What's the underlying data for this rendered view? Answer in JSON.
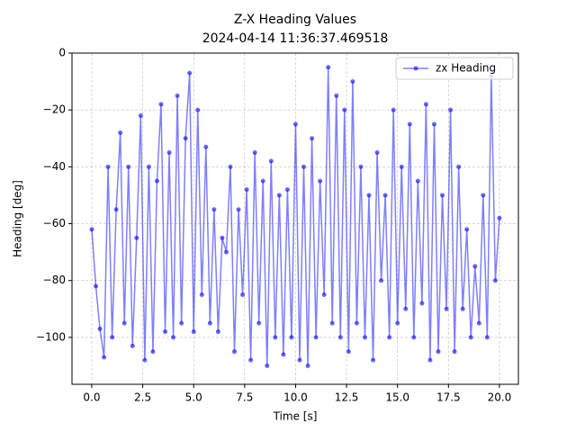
{
  "chart_data": {
    "type": "line",
    "title": "Z-X Heading Values",
    "subtitle": "2024-04-14 11:36:37.469518",
    "x_label": "Time [s]",
    "y_label": "Heading [deg]",
    "grid": true,
    "legend_position": "upper right",
    "xlim": [
      -0.97,
      20.93
    ],
    "ylim": [
      -116.5,
      0
    ],
    "xticks": [
      {
        "value": 0,
        "label": "0.0"
      },
      {
        "value": 2.5,
        "label": "2.5"
      },
      {
        "value": 5,
        "label": "5.0"
      },
      {
        "value": 7.5,
        "label": "7.5"
      },
      {
        "value": 10,
        "label": "10.0"
      },
      {
        "value": 12.5,
        "label": "12.5"
      },
      {
        "value": 15,
        "label": "15.0"
      },
      {
        "value": 17.5,
        "label": "17.5"
      },
      {
        "value": 20,
        "label": "20.0"
      }
    ],
    "yticks": [
      {
        "value": -100,
        "label": "−100"
      },
      {
        "value": -80,
        "label": "−80"
      },
      {
        "value": -60,
        "label": "−60"
      },
      {
        "value": -40,
        "label": "−40"
      },
      {
        "value": -20,
        "label": "−20"
      },
      0
    ],
    "x": [
      0,
      0.2,
      0.4,
      0.6,
      0.8,
      1,
      1.2,
      1.4,
      1.6,
      1.8,
      2,
      2.2,
      2.4,
      2.6,
      2.8,
      3,
      3.2,
      3.4,
      3.6,
      3.8,
      4,
      4.2,
      4.4,
      4.6,
      4.8,
      5,
      5.2,
      5.4,
      5.6,
      5.8,
      6,
      6.2,
      6.4,
      6.6,
      6.8,
      7,
      7.2,
      7.4,
      7.6,
      7.8,
      8,
      8.2,
      8.4,
      8.6,
      8.8,
      9,
      9.2,
      9.4,
      9.6,
      9.8,
      10,
      10.2,
      10.4,
      10.6,
      10.8,
      11,
      11.2,
      11.4,
      11.6,
      11.8,
      12,
      12.2,
      12.4,
      12.6,
      12.8,
      13,
      13.2,
      13.4,
      13.6,
      13.8,
      14,
      14.2,
      14.4,
      14.6,
      14.8,
      15,
      15.2,
      15.4,
      15.6,
      15.8,
      16,
      16.2,
      16.4,
      16.6,
      16.8,
      17,
      17.2,
      17.4,
      17.6,
      17.8,
      18,
      18.2,
      18.4,
      18.6,
      18.8,
      19,
      19.2,
      19.4,
      19.6,
      19.8,
      20
    ],
    "series": [
      {
        "name": "zx Heading",
        "color": "#0000ff",
        "values": [
          -62,
          -82,
          -97,
          -107,
          -40,
          -100,
          -55,
          -28,
          -95,
          -40,
          -103,
          -65,
          -22,
          -108,
          -40,
          -105,
          -45,
          -18,
          -98,
          -35,
          -100,
          -15,
          -95,
          -30,
          -7,
          -98,
          -20,
          -85,
          -33,
          -95,
          -55,
          -98,
          -65,
          -70,
          -40,
          -105,
          -55,
          -85,
          -48,
          -108,
          -35,
          -95,
          -45,
          -110,
          -38,
          -100,
          -50,
          -106,
          -48,
          -100,
          -25,
          -108,
          -40,
          -110,
          -30,
          -100,
          -45,
          -85,
          -5,
          -95,
          -15,
          -100,
          -20,
          -105,
          -10,
          -95,
          -40,
          -100,
          -50,
          -108,
          -35,
          -80,
          -50,
          -100,
          -20,
          -95,
          -40,
          -90,
          -25,
          -100,
          -45,
          -88,
          -18,
          -108,
          -25,
          -105,
          -50,
          -90,
          -20,
          -105,
          -40,
          -90,
          -62,
          -100,
          -75,
          -95,
          -50,
          -100,
          -8,
          -80,
          -58
        ]
      }
    ]
  }
}
